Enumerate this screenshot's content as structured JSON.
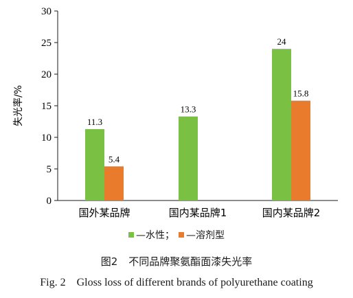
{
  "chart_data": {
    "type": "bar",
    "categories": [
      "国外某品牌",
      "国内某品牌1",
      "国内某品牌2"
    ],
    "series": [
      {
        "name": "水性",
        "color": "#7ac143",
        "values": [
          11.3,
          13.3,
          24
        ]
      },
      {
        "name": "溶剂型",
        "color": "#e87b2c",
        "values": [
          5.4,
          null,
          15.8
        ]
      }
    ],
    "data_labels": [
      [
        "11.3",
        "13.3",
        "24"
      ],
      [
        "5.4",
        "",
        "15.8"
      ]
    ],
    "ylabel": "失光率/%",
    "xlabel": "",
    "ylim": [
      0,
      30
    ],
    "yticks": [
      0,
      5,
      10,
      15,
      20,
      25,
      30
    ],
    "grid": false,
    "legend_position": "bottom"
  },
  "legend": {
    "item1": "—水性；",
    "item2": "—溶剂型"
  },
  "caption": {
    "cn_number": "图2",
    "cn_title": "不同品牌聚氨酯面漆失光率",
    "en_number": "Fig. 2",
    "en_title": "Gloss loss of different brands of polyurethane coating"
  }
}
